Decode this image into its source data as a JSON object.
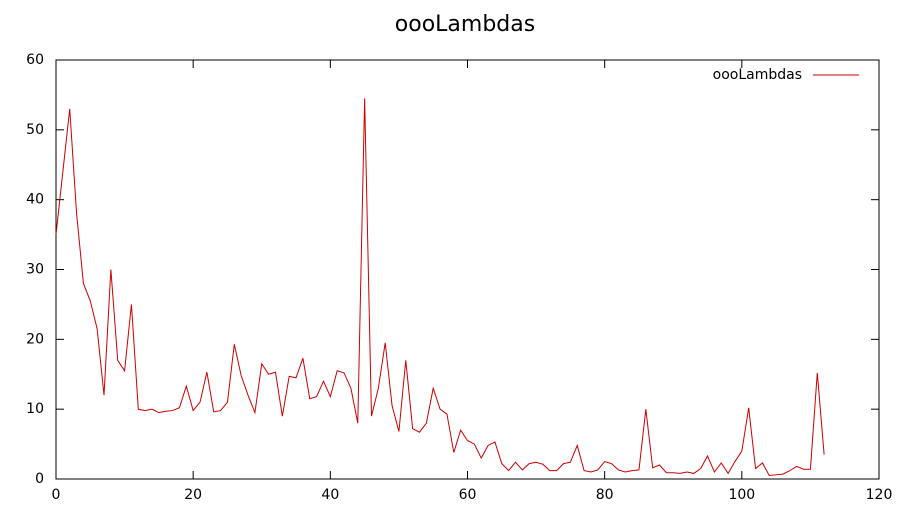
{
  "chart_data": {
    "type": "line",
    "title": "oooLambdas",
    "x": [
      0,
      1,
      2,
      3,
      4,
      5,
      6,
      7,
      8,
      9,
      10,
      11,
      12,
      13,
      14,
      15,
      16,
      17,
      18,
      19,
      20,
      21,
      22,
      23,
      24,
      25,
      26,
      27,
      28,
      29,
      30,
      31,
      32,
      33,
      34,
      35,
      36,
      37,
      38,
      39,
      40,
      41,
      42,
      43,
      44,
      45,
      46,
      47,
      48,
      49,
      50,
      51,
      52,
      53,
      54,
      55,
      56,
      57,
      58,
      59,
      60,
      61,
      62,
      63,
      64,
      65,
      66,
      67,
      68,
      69,
      70,
      71,
      72,
      73,
      74,
      75,
      76,
      77,
      78,
      79,
      80,
      81,
      82,
      83,
      84,
      85,
      86,
      87,
      88,
      89,
      90,
      91,
      92,
      93,
      94,
      95,
      96,
      97,
      98,
      99,
      100,
      101,
      102,
      103,
      104,
      105,
      106,
      107,
      108,
      109,
      110,
      111,
      112
    ],
    "series": [
      {
        "name": "oooLambdas",
        "color": "#cc0000",
        "values": [
          35,
          44,
          53,
          38,
          28,
          25.5,
          21.5,
          12,
          30,
          17,
          15.5,
          25,
          10,
          9.8,
          10,
          9.5,
          9.7,
          9.8,
          10.2,
          13.3,
          9.8,
          11,
          15.3,
          9.6,
          9.8,
          11,
          19.3,
          14.8,
          12,
          9.5,
          16.5,
          15,
          15.3,
          9,
          14.7,
          14.5,
          17.3,
          11.5,
          11.8,
          14,
          11.8,
          15.5,
          15.2,
          13,
          8,
          54.5,
          9,
          13,
          19.5,
          10.5,
          6.8,
          17,
          7.2,
          6.7,
          8,
          13,
          10,
          9.3,
          3.8,
          7,
          5.5,
          5,
          3,
          4.8,
          5.3,
          2.2,
          1.2,
          2.4,
          1.3,
          2.2,
          2.4,
          2.1,
          1.2,
          1.2,
          2.2,
          2.4,
          4.8,
          1.2,
          1,
          1.3,
          2.5,
          2.2,
          1.3,
          1,
          1.2,
          1.3,
          10,
          1.6,
          2,
          0.9,
          0.9,
          0.8,
          1,
          0.8,
          1.5,
          3.3,
          1,
          2.3,
          0.8,
          2.5,
          4,
          10.2,
          1.5,
          2.3,
          0.5,
          0.6,
          0.7,
          1.2,
          1.8,
          1.4,
          1.4,
          15.2,
          3.5
        ]
      }
    ],
    "xlim": [
      0,
      120
    ],
    "xticks": [
      0,
      20,
      40,
      60,
      80,
      100,
      120
    ],
    "ylim": [
      0,
      60
    ],
    "yticks": [
      0,
      10,
      20,
      30,
      40,
      50,
      60
    ],
    "legend": "top-right",
    "grid": false
  }
}
